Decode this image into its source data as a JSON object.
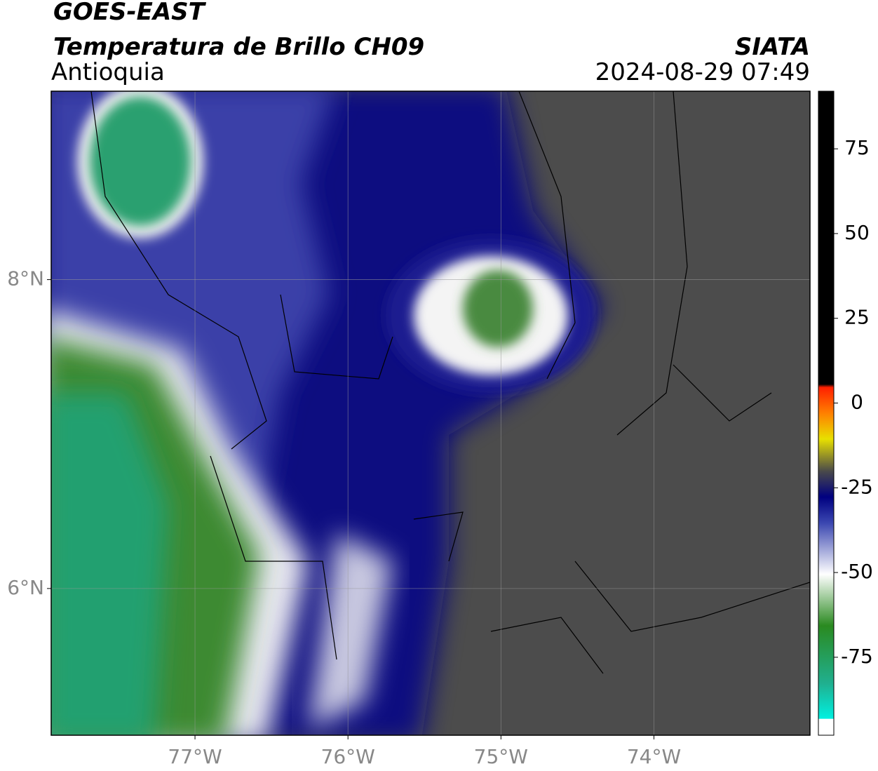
{
  "header": {
    "satellite": "GOES-EAST",
    "product": "Temperatura de Brillo CH09",
    "region": "Antioquia",
    "source": "SIATA",
    "datetime": "2024-08-29 07:49"
  },
  "map": {
    "lonlim": [
      -77.94,
      -72.98
    ],
    "latlim": [
      5.05,
      9.22
    ],
    "lon_ticks": [
      {
        "value": -77,
        "label": "77°W"
      },
      {
        "value": -76,
        "label": "76°W"
      },
      {
        "value": -75,
        "label": "75°W"
      },
      {
        "value": -74,
        "label": "74°W"
      }
    ],
    "lat_ticks": [
      {
        "value": 8,
        "label": "8°N"
      },
      {
        "value": 6,
        "label": "6°N"
      }
    ]
  },
  "colorbar": {
    "clim": [
      -98,
      92
    ],
    "ticks": [
      75,
      50,
      25,
      0,
      -25,
      -50,
      -75
    ]
  }
}
